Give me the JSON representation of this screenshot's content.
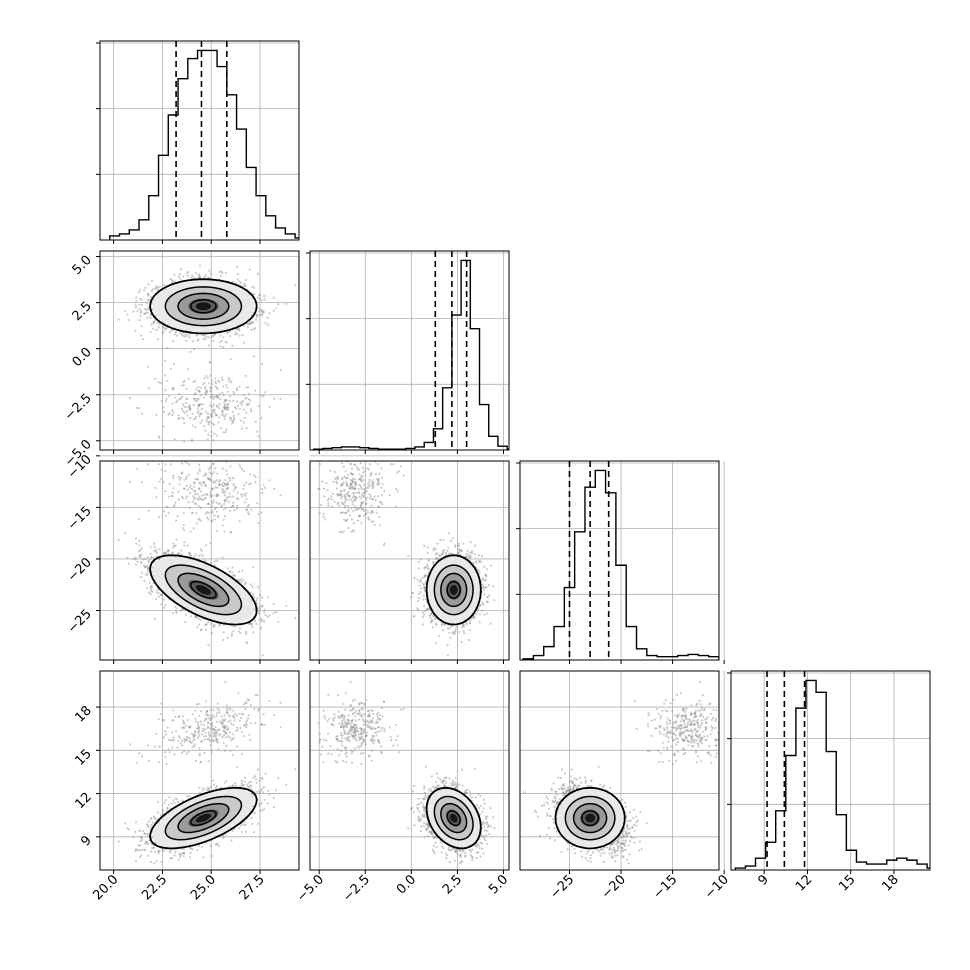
{
  "chart_data": {
    "type": "corner",
    "grid": true,
    "parameters": [
      {
        "ticks": [
          20.0,
          22.5,
          25.0,
          27.5
        ],
        "tick_labels": [
          "20.0",
          "22.5",
          "25.0",
          "27.5"
        ],
        "range": [
          19.3,
          29.5
        ]
      },
      {
        "ticks": [
          -5.0,
          -2.5,
          0.0,
          2.5,
          5.0
        ],
        "tick_labels": [
          "−5.0",
          "−2.5",
          "0.0",
          "2.5",
          "5.0"
        ],
        "range": [
          -5.5,
          5.3
        ]
      },
      {
        "ticks": [
          -25,
          -20,
          -15,
          -10
        ],
        "tick_labels": [
          "−25",
          "−20",
          "−15",
          "−10"
        ],
        "range": [
          -29.8,
          -10.5
        ]
      },
      {
        "ticks": [
          9,
          12,
          15,
          18
        ],
        "tick_labels": [
          "9",
          "12",
          "15",
          "18"
        ],
        "range": [
          6.7,
          20.5
        ]
      }
    ],
    "quantiles": [
      [
        23.2,
        24.5,
        25.8
      ],
      [
        1.3,
        2.2,
        3.0
      ],
      [
        -25.0,
        -23.0,
        -21.2
      ],
      [
        9.2,
        10.4,
        11.8
      ]
    ],
    "histograms": [
      {
        "bin_start": 19.8,
        "bin_width": 0.5,
        "counts": [
          2,
          3,
          5,
          10,
          22,
          42,
          62,
          80,
          90,
          94,
          94,
          86,
          72,
          55,
          36,
          22,
          12,
          6,
          3,
          1
        ]
      },
      {
        "bin_start": -5.3,
        "bin_width": 0.5,
        "counts": [
          1,
          2,
          3,
          4,
          4,
          3,
          2,
          1,
          1,
          1,
          2,
          4,
          10,
          28,
          82,
          178,
          250,
          160,
          60,
          18,
          5,
          1
        ]
      },
      {
        "bin_start": -29.5,
        "bin_width": 1.0,
        "counts": [
          1,
          4,
          12,
          30,
          65,
          115,
          155,
          170,
          150,
          85,
          30,
          10,
          4,
          3,
          3,
          4,
          5,
          4,
          3,
          1
        ]
      },
      {
        "bin_start": 7.0,
        "bin_width": 0.7,
        "counts": [
          1,
          2,
          6,
          14,
          30,
          58,
          82,
          96,
          90,
          60,
          28,
          10,
          4,
          3,
          3,
          5,
          6,
          5,
          3,
          1
        ]
      }
    ],
    "components": [
      {
        "weight": 0.88,
        "mean": [
          24.6,
          2.3,
          -23.0,
          10.3
        ],
        "sd": [
          1.3,
          0.7,
          1.6,
          1.0
        ],
        "corr": [
          [
            1,
            0,
            -0.6,
            0.6
          ],
          [
            0,
            1,
            0,
            -0.3
          ],
          [
            -0.6,
            0,
            1,
            0
          ],
          [
            0.6,
            -0.3,
            0,
            1
          ]
        ]
      },
      {
        "weight": 0.12,
        "mean": [
          25.0,
          -3.0,
          -13.5,
          16.5
        ],
        "sd": [
          1.3,
          1.0,
          1.6,
          1.0
        ],
        "corr": [
          [
            1,
            0,
            0,
            0.4
          ],
          [
            0,
            1,
            0,
            0
          ],
          [
            0,
            0,
            1,
            0
          ],
          [
            0.4,
            0,
            0,
            1
          ]
        ]
      }
    ],
    "contour_sigmas": [
      0.5,
      1.0,
      1.5,
      2.0
    ]
  }
}
